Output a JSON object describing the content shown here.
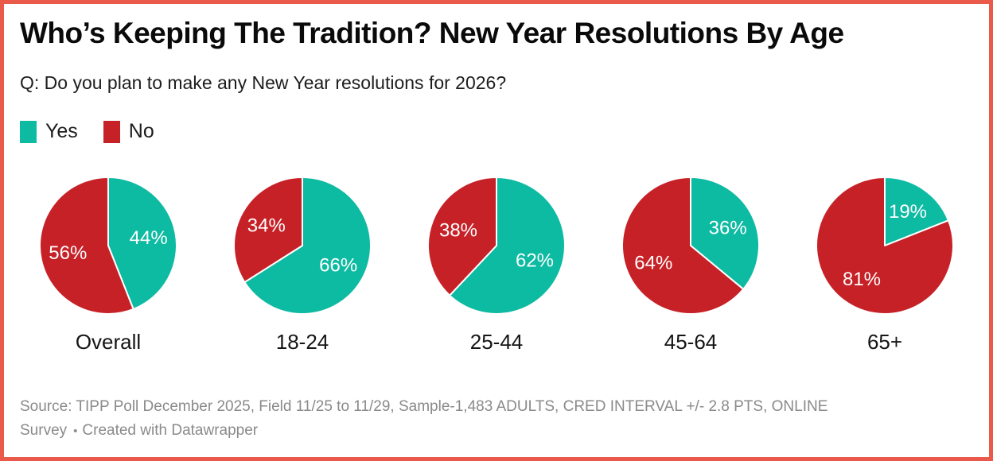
{
  "frame": {
    "border_color": "#ea5a4b"
  },
  "chart_data": {
    "type": "pie",
    "title": "Who’s Keeping The Tradition? New Year Resolutions By Age",
    "question": "Q: Do you plan to make any New Year resolutions for 2026?",
    "series": [
      "Yes",
      "No"
    ],
    "colors": [
      "#0dbaa2",
      "#c62127"
    ],
    "unit": "%",
    "start_angle": "12-oclock",
    "direction": "clockwise",
    "legend_position": "top-left",
    "groups": [
      {
        "label": "Overall",
        "values": [
          44,
          56
        ]
      },
      {
        "label": "18-24",
        "values": [
          66,
          34
        ]
      },
      {
        "label": "25-44",
        "values": [
          62,
          38
        ]
      },
      {
        "label": "45-64",
        "values": [
          36,
          64
        ]
      },
      {
        "label": "65+",
        "values": [
          19,
          81
        ]
      }
    ]
  },
  "footer": {
    "source": "Source: TIPP Poll December 2025, Field 11/25 to 11/29, Sample-1,483 ADULTS, CRED INTERVAL +/- 2.8 PTS, ONLINE Survey",
    "separator": "•",
    "attribution": "Created with Datawrapper"
  }
}
